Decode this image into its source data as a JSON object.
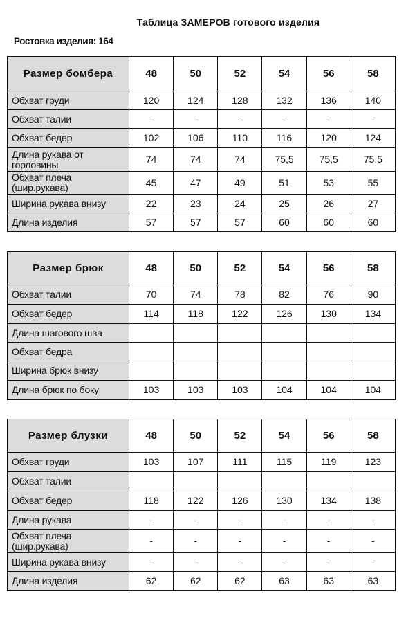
{
  "title": "Таблица ЗАМЕРОВ готового изделия",
  "subtitle": {
    "label": "Ростовка изделия:",
    "value": "164"
  },
  "sizes": [
    "48",
    "50",
    "52",
    "54",
    "56",
    "58"
  ],
  "tables": [
    {
      "header": "Размер бомбера",
      "rows": [
        {
          "label": "Обхват груди",
          "values": [
            "120",
            "124",
            "128",
            "132",
            "136",
            "140"
          ]
        },
        {
          "label": "Обхват талии",
          "values": [
            "-",
            "-",
            "-",
            "-",
            "-",
            "-"
          ]
        },
        {
          "label": "Обхват бедер",
          "values": [
            "102",
            "106",
            "110",
            "116",
            "120",
            "124"
          ]
        },
        {
          "label": "Длина рукава от горловины",
          "values": [
            "74",
            "74",
            "74",
            "75,5",
            "75,5",
            "75,5"
          ]
        },
        {
          "label": "Обхват плеча (шир.рукава)",
          "values": [
            "45",
            "47",
            "49",
            "51",
            "53",
            "55"
          ]
        },
        {
          "label": "Ширина рукава внизу",
          "values": [
            "22",
            "23",
            "24",
            "25",
            "26",
            "27"
          ]
        },
        {
          "label": "Длина изделия",
          "values": [
            "57",
            "57",
            "57",
            "60",
            "60",
            "60"
          ]
        }
      ]
    },
    {
      "header": "Размер брюк",
      "rows": [
        {
          "label": "Обхват талии",
          "values": [
            "70",
            "74",
            "78",
            "82",
            "76",
            "90"
          ]
        },
        {
          "label": "Обхват бедер",
          "values": [
            "114",
            "118",
            "122",
            "126",
            "130",
            "134"
          ]
        },
        {
          "label": "Длина шагового шва",
          "values": [
            "",
            "",
            "",
            "",
            "",
            ""
          ]
        },
        {
          "label": "Обхват бедра",
          "values": [
            "",
            "",
            "",
            "",
            "",
            ""
          ]
        },
        {
          "label": "Ширина брюк внизу",
          "values": [
            "",
            "",
            "",
            "",
            "",
            ""
          ]
        },
        {
          "label": "Длина брюк по боку",
          "values": [
            "103",
            "103",
            "103",
            "104",
            "104",
            "104"
          ]
        }
      ]
    },
    {
      "header": "Размер блузки",
      "rows": [
        {
          "label": "Обхват груди",
          "values": [
            "103",
            "107",
            "111",
            "115",
            "119",
            "123"
          ]
        },
        {
          "label": "Обхват талии",
          "values": [
            "",
            "",
            "",
            "",
            "",
            ""
          ]
        },
        {
          "label": "Обхват бедер",
          "values": [
            "118",
            "122",
            "126",
            "130",
            "134",
            "138"
          ]
        },
        {
          "label": "Длина рукава",
          "values": [
            "-",
            "-",
            "-",
            "-",
            "-",
            "-"
          ]
        },
        {
          "label": "Обхват плеча (шир.рукава)",
          "values": [
            "-",
            "-",
            "-",
            "-",
            "-",
            "-"
          ]
        },
        {
          "label": "Ширина рукава внизу",
          "values": [
            "-",
            "-",
            "-",
            "-",
            "-",
            "-"
          ]
        },
        {
          "label": "Длина изделия",
          "values": [
            "62",
            "62",
            "62",
            "63",
            "63",
            "63"
          ]
        }
      ]
    }
  ]
}
